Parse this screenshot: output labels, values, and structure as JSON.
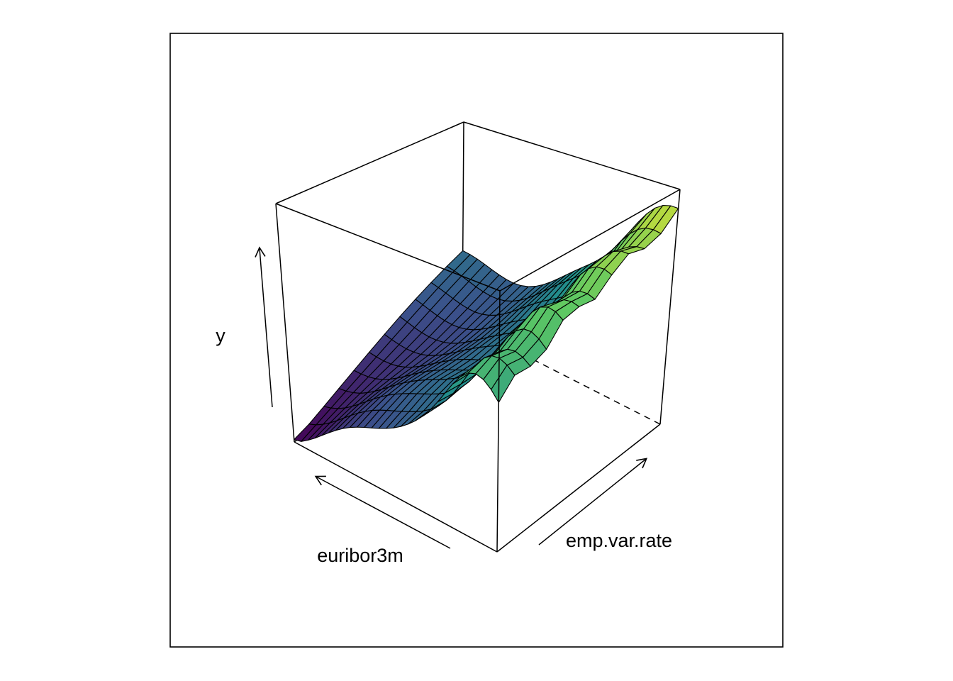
{
  "chart_data": {
    "type": "surface3d",
    "title": "",
    "axes": {
      "x": {
        "label": "euribor3m"
      },
      "y": {
        "label": "emp.var.rate"
      },
      "z": {
        "label": "y"
      }
    },
    "ranges": {
      "x": [
        0,
        1
      ],
      "y": [
        0,
        1
      ],
      "z": [
        0,
        1
      ]
    },
    "colormap": [
      "#440154",
      "#3b528b",
      "#21908c",
      "#5dc863",
      "#fde725"
    ],
    "grid_nx": 28,
    "grid_ny": 11,
    "mesh_color": "#000000",
    "axis_ticks": false,
    "box": true
  }
}
